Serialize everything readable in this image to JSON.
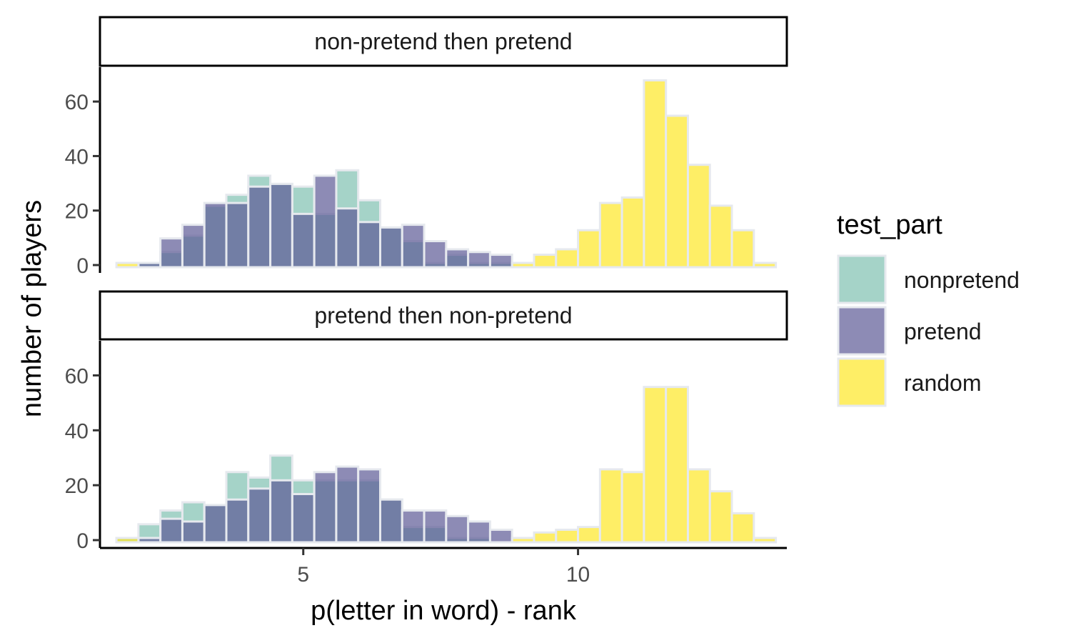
{
  "chart_data": {
    "type": "bar",
    "title": "",
    "xlabel": "p(letter in word) - rank",
    "ylabel": "number of players",
    "xlim": [
      1.3,
      13.8
    ],
    "ylim": [
      0,
      70
    ],
    "x_ticks": [
      5,
      10
    ],
    "y_ticks": [
      0,
      20,
      40,
      60
    ],
    "bin_width": 0.4,
    "grid": false,
    "legend": {
      "title": "test_part",
      "position": "right",
      "entries": [
        {
          "name": "nonpretend",
          "color": "#7fc1b1"
        },
        {
          "name": "pretend",
          "color": "#5c5a96"
        },
        {
          "name": "random",
          "color": "#fde725"
        }
      ]
    },
    "bar_outline_color": "#e6e9ee",
    "panels": [
      {
        "strip": "non-pretend then pretend",
        "series": [
          {
            "name": "nonpretend",
            "color": "#7fc1b1",
            "bins": [
              [
                2.2,
                0
              ],
              [
                2.6,
                4
              ],
              [
                3.0,
                10
              ],
              [
                3.4,
                21
              ],
              [
                3.8,
                25
              ],
              [
                4.2,
                32
              ],
              [
                4.6,
                29
              ],
              [
                5.0,
                28
              ],
              [
                5.4,
                18
              ],
              [
                5.8,
                34
              ],
              [
                6.2,
                23
              ],
              [
                6.6,
                13
              ],
              [
                7.0,
                8
              ],
              [
                7.4,
                0
              ],
              [
                7.8,
                3
              ],
              [
                8.2,
                0
              ],
              [
                8.6,
                0
              ]
            ]
          },
          {
            "name": "pretend",
            "color": "#5c5a96",
            "bins": [
              [
                2.2,
                0
              ],
              [
                2.6,
                9
              ],
              [
                3.0,
                14
              ],
              [
                3.4,
                22
              ],
              [
                3.8,
                22
              ],
              [
                4.2,
                28
              ],
              [
                4.6,
                29
              ],
              [
                5.0,
                18
              ],
              [
                5.4,
                32
              ],
              [
                5.8,
                20
              ],
              [
                6.2,
                15
              ],
              [
                6.6,
                13
              ],
              [
                7.0,
                14
              ],
              [
                7.4,
                8
              ],
              [
                7.8,
                5
              ],
              [
                8.2,
                4
              ],
              [
                8.6,
                3
              ]
            ]
          },
          {
            "name": "random",
            "color": "#fde725",
            "bins": [
              [
                1.8,
                0
              ],
              [
                9.0,
                0
              ],
              [
                9.4,
                3
              ],
              [
                9.8,
                5
              ],
              [
                10.2,
                12
              ],
              [
                10.6,
                22
              ],
              [
                11.0,
                24
              ],
              [
                11.4,
                67
              ],
              [
                11.8,
                54
              ],
              [
                12.2,
                36
              ],
              [
                12.6,
                21
              ],
              [
                13.0,
                12
              ],
              [
                13.4,
                0
              ]
            ]
          }
        ]
      },
      {
        "strip": "pretend then non-pretend",
        "series": [
          {
            "name": "nonpretend",
            "color": "#7fc1b1",
            "bins": [
              [
                1.8,
                0
              ],
              [
                2.2,
                5
              ],
              [
                2.6,
                10
              ],
              [
                3.0,
                13
              ],
              [
                3.4,
                12
              ],
              [
                3.8,
                24
              ],
              [
                4.2,
                22
              ],
              [
                4.6,
                30
              ],
              [
                5.0,
                21
              ],
              [
                5.4,
                21
              ],
              [
                5.8,
                21
              ],
              [
                6.2,
                21
              ],
              [
                6.6,
                14
              ],
              [
                7.0,
                4
              ],
              [
                7.4,
                4
              ],
              [
                7.8,
                0
              ],
              [
                8.2,
                0
              ]
            ]
          },
          {
            "name": "pretend",
            "color": "#5c5a96",
            "bins": [
              [
                2.2,
                0
              ],
              [
                2.6,
                7
              ],
              [
                3.0,
                6
              ],
              [
                3.4,
                12
              ],
              [
                3.8,
                14
              ],
              [
                4.2,
                18
              ],
              [
                4.6,
                21
              ],
              [
                5.0,
                16
              ],
              [
                5.4,
                24
              ],
              [
                5.8,
                26
              ],
              [
                6.2,
                25
              ],
              [
                6.6,
                14
              ],
              [
                7.0,
                10
              ],
              [
                7.4,
                10
              ],
              [
                7.8,
                8
              ],
              [
                8.2,
                6
              ],
              [
                8.6,
                3
              ]
            ]
          },
          {
            "name": "random",
            "color": "#fde725",
            "bins": [
              [
                1.8,
                0
              ],
              [
                9.0,
                0
              ],
              [
                9.4,
                2
              ],
              [
                9.8,
                3
              ],
              [
                10.2,
                4
              ],
              [
                10.6,
                25
              ],
              [
                11.0,
                24
              ],
              [
                11.4,
                55
              ],
              [
                11.8,
                55
              ],
              [
                12.2,
                25
              ],
              [
                12.6,
                17
              ],
              [
                13.0,
                9
              ],
              [
                13.4,
                0
              ]
            ]
          }
        ]
      }
    ]
  }
}
